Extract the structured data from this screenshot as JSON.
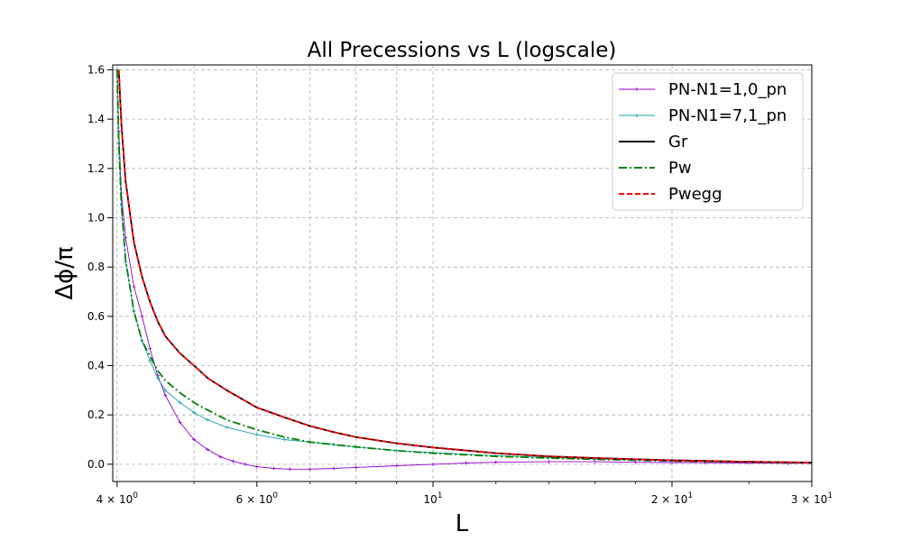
{
  "chart_data": {
    "type": "line",
    "title": "All Precessions vs L (logscale)",
    "xlabel": "L",
    "ylabel": "Δϕ/π",
    "xscale": "log",
    "xlim": [
      3.95,
      30
    ],
    "ylim": [
      -0.07,
      1.62
    ],
    "grid": true,
    "legend_position": "top-right",
    "x_major_ticks": [
      {
        "value": 4,
        "base": "4 × 10",
        "exp": "0"
      },
      {
        "value": 6,
        "base": "6 × 10",
        "exp": "0"
      },
      {
        "value": 10,
        "base": "10",
        "exp": "1"
      },
      {
        "value": 20,
        "base": "2 × 10",
        "exp": "1"
      },
      {
        "value": 30,
        "base": "3 × 10",
        "exp": "1"
      }
    ],
    "x_minor_gridlines": [
      5,
      7,
      8,
      9
    ],
    "y_ticks": [
      {
        "value": 0.0,
        "label": "0.0"
      },
      {
        "value": 0.2,
        "label": "0.2"
      },
      {
        "value": 0.4,
        "label": "0.4"
      },
      {
        "value": 0.6,
        "label": "0.6"
      },
      {
        "value": 0.8,
        "label": "0.8"
      },
      {
        "value": 1.0,
        "label": "1.0"
      },
      {
        "value": 1.2,
        "label": "1.2"
      },
      {
        "value": 1.4,
        "label": "1.4"
      },
      {
        "value": 1.6,
        "label": "1.6"
      }
    ],
    "series": [
      {
        "name": "PN-N1=1,0_pn",
        "color": "#9400d3",
        "style": "solid",
        "marker": "plus",
        "x": [
          4.0,
          4.02,
          4.05,
          4.1,
          4.2,
          4.3,
          4.4,
          4.5,
          4.6,
          4.8,
          5.0,
          5.2,
          5.4,
          5.6,
          5.8,
          6.0,
          6.3,
          6.6,
          7.0,
          7.5,
          8.0,
          9.0,
          10.0,
          11.0,
          12.0,
          14.0,
          16.0,
          18.0,
          20.0,
          22.0,
          25.0,
          28.0,
          30.0
        ],
        "y": [
          1.6,
          1.35,
          1.1,
          0.92,
          0.72,
          0.6,
          0.47,
          0.36,
          0.28,
          0.17,
          0.1,
          0.06,
          0.03,
          0.012,
          0.0,
          -0.01,
          -0.017,
          -0.02,
          -0.02,
          -0.017,
          -0.013,
          -0.006,
          0.0,
          0.005,
          0.008,
          0.01,
          0.01,
          0.008,
          0.007,
          0.006,
          0.005,
          0.004,
          0.004
        ]
      },
      {
        "name": "PN-N1=7,1_pn",
        "color": "#1aa3b0",
        "style": "solid",
        "marker": "plus",
        "x": [
          4.0,
          4.02,
          4.05,
          4.1,
          4.2,
          4.3,
          4.4,
          4.5,
          4.6,
          4.8,
          5.0,
          5.2,
          5.5,
          6.0,
          6.5,
          7.0,
          7.5,
          8.0,
          9.0,
          10.0,
          12.0,
          14.0,
          16.0,
          20.0,
          25.0,
          30.0
        ],
        "y": [
          1.6,
          1.3,
          1.05,
          0.82,
          0.62,
          0.5,
          0.42,
          0.35,
          0.3,
          0.25,
          0.21,
          0.18,
          0.15,
          0.12,
          0.1,
          0.09,
          0.08,
          0.07,
          0.055,
          0.047,
          0.035,
          0.027,
          0.022,
          0.015,
          0.01,
          0.007
        ]
      },
      {
        "name": "Gr",
        "color": "#000000",
        "style": "solid",
        "x": [
          4.02,
          4.05,
          4.1,
          4.2,
          4.3,
          4.4,
          4.5,
          4.6,
          4.8,
          5.0,
          5.2,
          5.5,
          6.0,
          6.5,
          7.0,
          7.5,
          8.0,
          9.0,
          10.0,
          12.0,
          14.0,
          16.0,
          20.0,
          25.0,
          30.0
        ],
        "y": [
          1.6,
          1.38,
          1.15,
          0.9,
          0.76,
          0.66,
          0.58,
          0.52,
          0.45,
          0.4,
          0.35,
          0.3,
          0.23,
          0.19,
          0.155,
          0.13,
          0.11,
          0.085,
          0.068,
          0.045,
          0.032,
          0.025,
          0.016,
          0.01,
          0.007
        ]
      },
      {
        "name": "Pw",
        "color": "#008000",
        "style": "dashdot",
        "x": [
          4.0,
          4.02,
          4.05,
          4.1,
          4.2,
          4.3,
          4.4,
          4.5,
          4.6,
          4.8,
          5.0,
          5.2,
          5.5,
          6.0,
          6.5,
          7.0,
          8.0,
          9.0,
          10.0,
          12.0,
          14.0,
          16.0,
          20.0,
          25.0,
          30.0
        ],
        "y": [
          1.6,
          1.3,
          1.05,
          0.83,
          0.62,
          0.5,
          0.44,
          0.38,
          0.34,
          0.29,
          0.25,
          0.22,
          0.18,
          0.14,
          0.11,
          0.09,
          0.07,
          0.055,
          0.045,
          0.032,
          0.025,
          0.02,
          0.013,
          0.009,
          0.006
        ]
      },
      {
        "name": "Pwegg",
        "color": "#ff0000",
        "style": "dashed",
        "x": [
          4.02,
          4.05,
          4.1,
          4.2,
          4.3,
          4.4,
          4.5,
          4.6,
          4.8,
          5.0,
          5.2,
          5.5,
          6.0,
          6.5,
          7.0,
          7.5,
          8.0,
          9.0,
          10.0,
          12.0,
          14.0,
          16.0,
          20.0,
          25.0,
          30.0
        ],
        "y": [
          1.6,
          1.38,
          1.15,
          0.9,
          0.76,
          0.66,
          0.58,
          0.52,
          0.45,
          0.4,
          0.35,
          0.3,
          0.23,
          0.19,
          0.155,
          0.13,
          0.11,
          0.085,
          0.068,
          0.045,
          0.032,
          0.025,
          0.016,
          0.01,
          0.007
        ]
      }
    ]
  }
}
